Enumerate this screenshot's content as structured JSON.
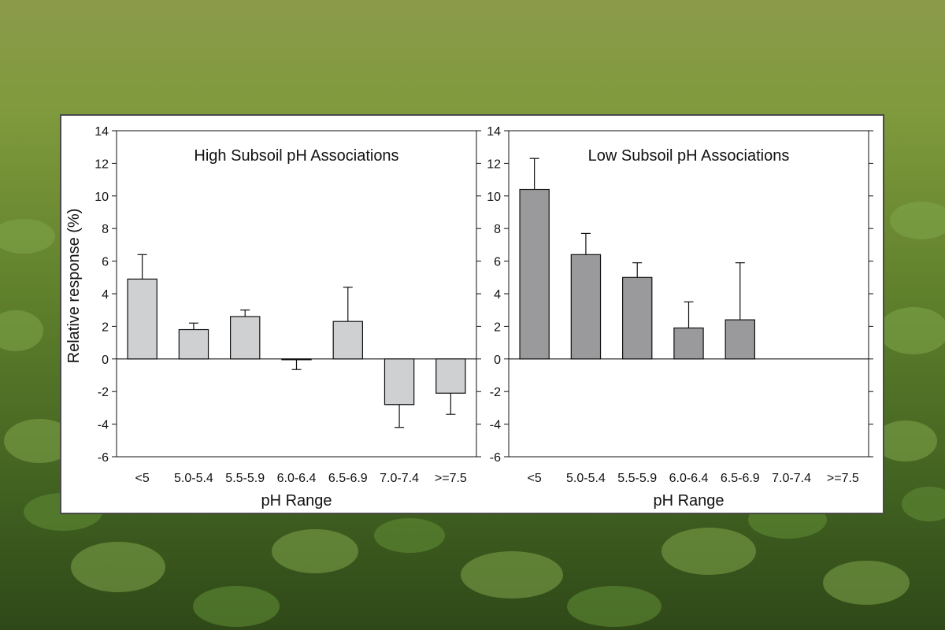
{
  "colors": {
    "bar_high": "#cfd0d2",
    "bar_low": "#9a9a9c",
    "axis": "#111111",
    "panel_bg": "#ffffff"
  },
  "background": {
    "subject": "soybean field"
  },
  "chart_data": [
    {
      "type": "bar",
      "title": "High Subsoil pH Associations",
      "xlabel": "pH Range",
      "ylabel": "Relative response (%)",
      "ylim": [
        -6,
        14
      ],
      "yticks": [
        -6,
        -4,
        -2,
        0,
        2,
        4,
        6,
        8,
        10,
        12,
        14
      ],
      "categories": [
        "<5",
        "5.0-5.4",
        "5.5-5.9",
        "6.0-6.4",
        "6.5-6.9",
        "7.0-7.4",
        ">=7.5"
      ],
      "values": [
        4.9,
        1.8,
        2.6,
        -0.05,
        2.3,
        -2.8,
        -2.1
      ],
      "error": [
        1.5,
        0.4,
        0.4,
        0.6,
        2.1,
        1.4,
        1.3
      ],
      "bar_color": "#cfd0d2",
      "grid": false
    },
    {
      "type": "bar",
      "title": "Low Subsoil pH Associations",
      "xlabel": "pH Range",
      "ylabel": "",
      "ylim": [
        -6,
        14
      ],
      "yticks": [
        -6,
        -4,
        -2,
        0,
        2,
        4,
        6,
        8,
        10,
        12,
        14
      ],
      "categories": [
        "<5",
        "5.0-5.4",
        "5.5-5.9",
        "6.0-6.4",
        "6.5-6.9",
        "7.0-7.4",
        ">=7.5"
      ],
      "values": [
        10.4,
        6.4,
        5.0,
        1.9,
        2.4,
        null,
        null
      ],
      "error": [
        1.9,
        1.3,
        0.9,
        1.6,
        3.5,
        null,
        null
      ],
      "bar_color": "#9a9a9c",
      "grid": false
    }
  ]
}
